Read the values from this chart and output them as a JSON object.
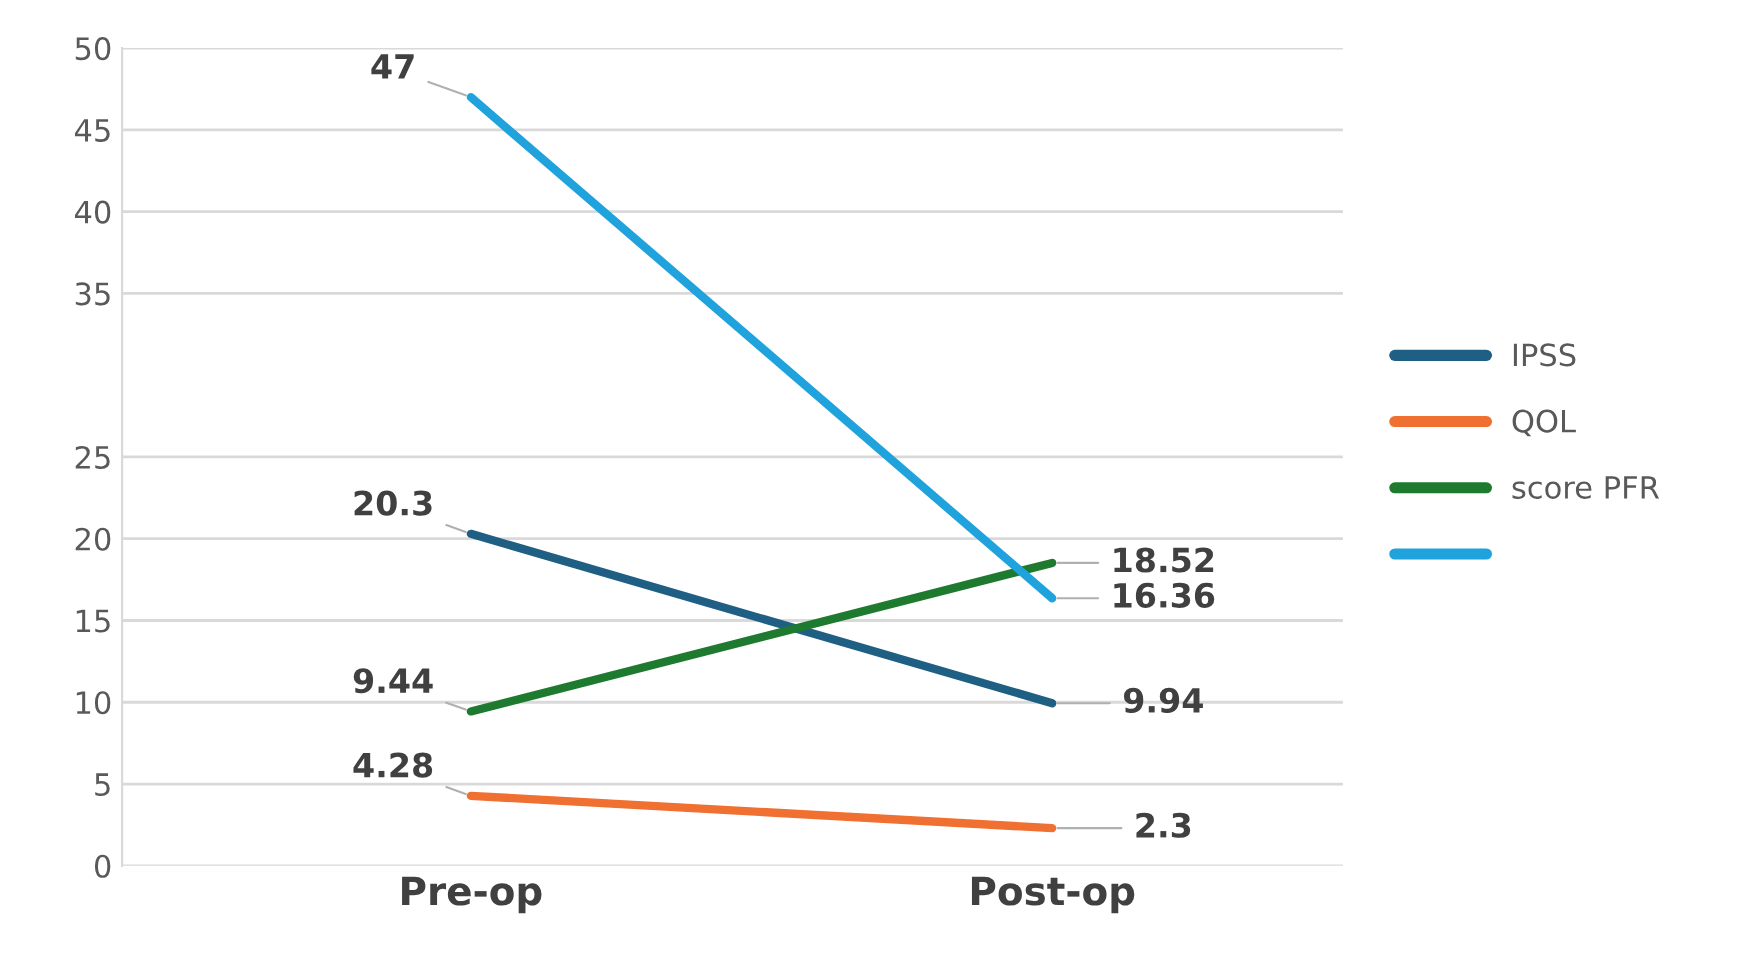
{
  "chart_data": {
    "type": "line",
    "categories": [
      "Pre-op",
      "Post-op"
    ],
    "series": [
      {
        "name": "IPSS",
        "color": "#1f5f84",
        "values": [
          20.3,
          9.94
        ]
      },
      {
        "name": "QOL",
        "color": "#ef7030",
        "values": [
          4.28,
          2.3
        ]
      },
      {
        "name": "score PFR",
        "color": "#1e7a2e",
        "values": [
          9.44,
          18.52
        ]
      },
      {
        "color": "#20a3dc",
        "values": [
          47,
          16.36
        ]
      }
    ],
    "ylim": [
      0,
      50
    ],
    "yticks": [
      0,
      5,
      10,
      15,
      20,
      25,
      35,
      40,
      45,
      50
    ],
    "grid": "y",
    "legend": "right",
    "data_labels": true,
    "marker": "none",
    "line_style": "solid"
  }
}
